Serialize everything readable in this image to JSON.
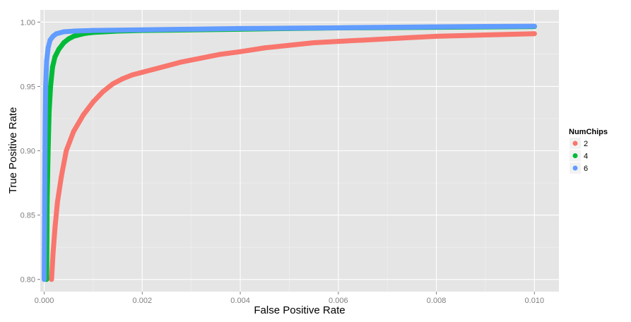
{
  "chart_data": {
    "type": "scatter",
    "title": "",
    "xlabel": "False Positive Rate",
    "ylabel": "True Positive Rate",
    "xlim": [
      -8e-05,
      0.0105
    ],
    "ylim": [
      0.7905,
      1.0095
    ],
    "x_ticks": [
      "0.000",
      "0.002",
      "0.004",
      "0.006",
      "0.008",
      "0.010"
    ],
    "y_ticks": [
      "0.80",
      "0.85",
      "0.90",
      "0.95",
      "1.00"
    ],
    "grid": true,
    "legend": {
      "title": "NumChips",
      "position": "right"
    },
    "series": [
      {
        "name": "2",
        "color": "#F8766D",
        "points": [
          [
            0.00015,
            0.8
          ],
          [
            0.00018,
            0.82
          ],
          [
            0.00022,
            0.84
          ],
          [
            0.00027,
            0.86
          ],
          [
            0.00035,
            0.88
          ],
          [
            0.00045,
            0.9
          ],
          [
            0.0006,
            0.915
          ],
          [
            0.0008,
            0.928
          ],
          [
            0.001,
            0.938
          ],
          [
            0.0012,
            0.946
          ],
          [
            0.0014,
            0.952
          ],
          [
            0.0016,
            0.956
          ],
          [
            0.0018,
            0.959
          ],
          [
            0.002,
            0.961
          ],
          [
            0.0024,
            0.965
          ],
          [
            0.0028,
            0.969
          ],
          [
            0.0032,
            0.972
          ],
          [
            0.0036,
            0.975
          ],
          [
            0.004,
            0.977
          ],
          [
            0.0045,
            0.98
          ],
          [
            0.005,
            0.982
          ],
          [
            0.0055,
            0.984
          ],
          [
            0.006,
            0.985
          ],
          [
            0.0065,
            0.986
          ],
          [
            0.007,
            0.987
          ],
          [
            0.0075,
            0.988
          ],
          [
            0.008,
            0.989
          ],
          [
            0.0085,
            0.9895
          ],
          [
            0.009,
            0.99
          ],
          [
            0.0095,
            0.9905
          ],
          [
            0.01,
            0.991
          ]
        ]
      },
      {
        "name": "4",
        "color": "#00BA38",
        "points": [
          [
            5e-05,
            0.8
          ],
          [
            6e-05,
            0.86
          ],
          [
            8e-05,
            0.9
          ],
          [
            0.0001,
            0.93
          ],
          [
            0.00013,
            0.95
          ],
          [
            0.00017,
            0.965
          ],
          [
            0.00022,
            0.973
          ],
          [
            0.0003,
            0.979
          ],
          [
            0.0004,
            0.984
          ],
          [
            0.0005,
            0.987
          ],
          [
            0.0006,
            0.989
          ],
          [
            0.0008,
            0.991
          ],
          [
            0.001,
            0.992
          ],
          [
            0.0015,
            0.993
          ],
          [
            0.002,
            0.9935
          ],
          [
            0.003,
            0.994
          ],
          [
            0.004,
            0.9945
          ],
          [
            0.005,
            0.995
          ],
          [
            0.006,
            0.9955
          ],
          [
            0.008,
            0.996
          ],
          [
            0.01,
            0.9965
          ]
        ]
      },
      {
        "name": "6",
        "color": "#619CFF",
        "points": [
          [
            0.0,
            0.8
          ],
          [
            1e-05,
            0.86
          ],
          [
            2e-05,
            0.92
          ],
          [
            3e-05,
            0.95
          ],
          [
            5e-05,
            0.97
          ],
          [
            8e-05,
            0.98
          ],
          [
            0.00012,
            0.986
          ],
          [
            0.00018,
            0.989
          ],
          [
            0.00025,
            0.991
          ],
          [
            0.0004,
            0.9925
          ],
          [
            0.0006,
            0.993
          ],
          [
            0.001,
            0.9935
          ],
          [
            0.002,
            0.994
          ],
          [
            0.003,
            0.9945
          ],
          [
            0.004,
            0.995
          ],
          [
            0.005,
            0.9953
          ],
          [
            0.006,
            0.9956
          ],
          [
            0.007,
            0.996
          ],
          [
            0.008,
            0.9963
          ],
          [
            0.009,
            0.9966
          ],
          [
            0.01,
            0.9968
          ]
        ]
      }
    ]
  }
}
